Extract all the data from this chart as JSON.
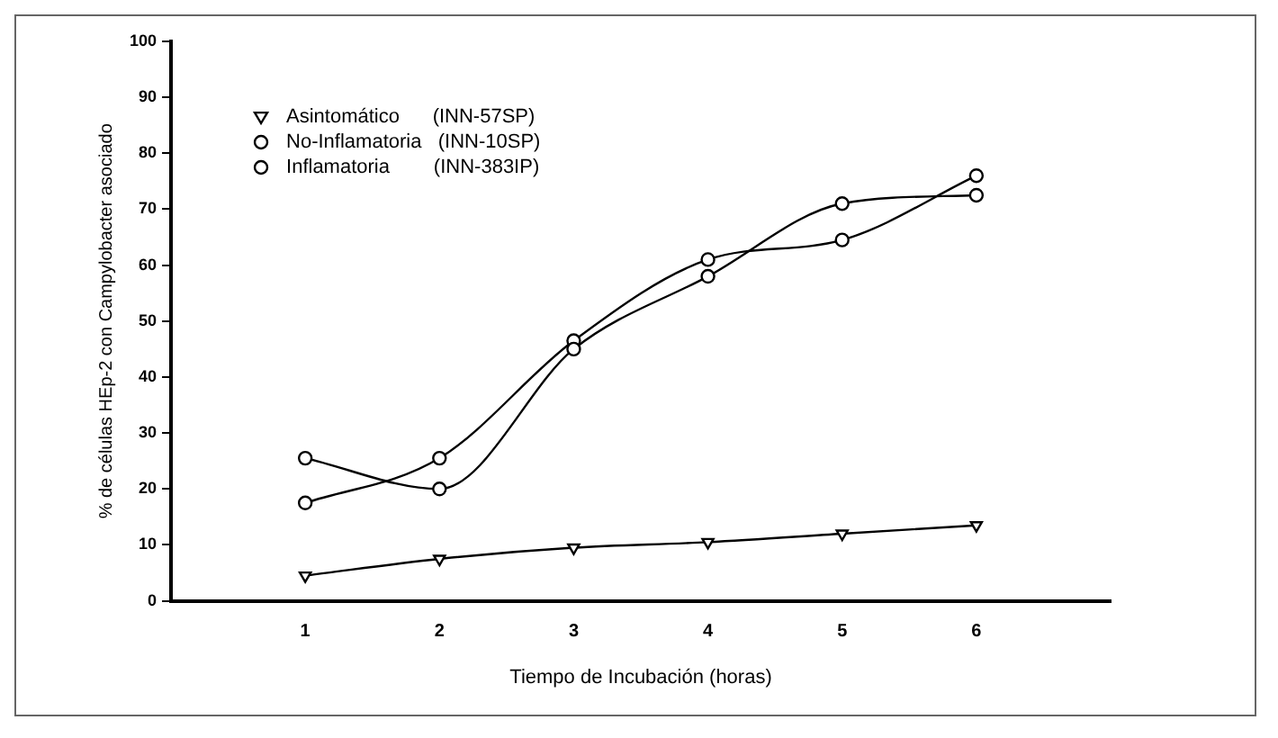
{
  "chart_data": {
    "type": "line",
    "xlabel": "Tiempo de Incubación (horas)",
    "ylabel": "% de células HEp-2 con Campylobacter asociado",
    "x": [
      1,
      2,
      3,
      4,
      5,
      6
    ],
    "series": [
      {
        "name": "Asintomático      (INN-57SP)",
        "color": "#000000",
        "marker": "triangle",
        "values": [
          4.5,
          7.5,
          9.5,
          10.5,
          12,
          13.5
        ]
      },
      {
        "name": "No-Inflamatoria   (INN-10SP)",
        "color": "#000000",
        "marker": "circle",
        "values": [
          25.5,
          20,
          45,
          58,
          71,
          72.5
        ]
      },
      {
        "name": "Inflamatoria        (INN-383IP)",
        "color": "#000000",
        "marker": "circle",
        "values": [
          17.5,
          25.5,
          46.5,
          61,
          64.5,
          76
        ]
      }
    ],
    "xlim": [
      0,
      7
    ],
    "xticks": [
      1,
      2,
      3,
      4,
      5,
      6
    ],
    "ylim": [
      0,
      100
    ],
    "yticks": [
      0,
      10,
      20,
      30,
      40,
      50,
      60,
      70,
      80,
      90,
      100
    ],
    "grid": false,
    "legend": "top left",
    "line_style": "solid"
  }
}
